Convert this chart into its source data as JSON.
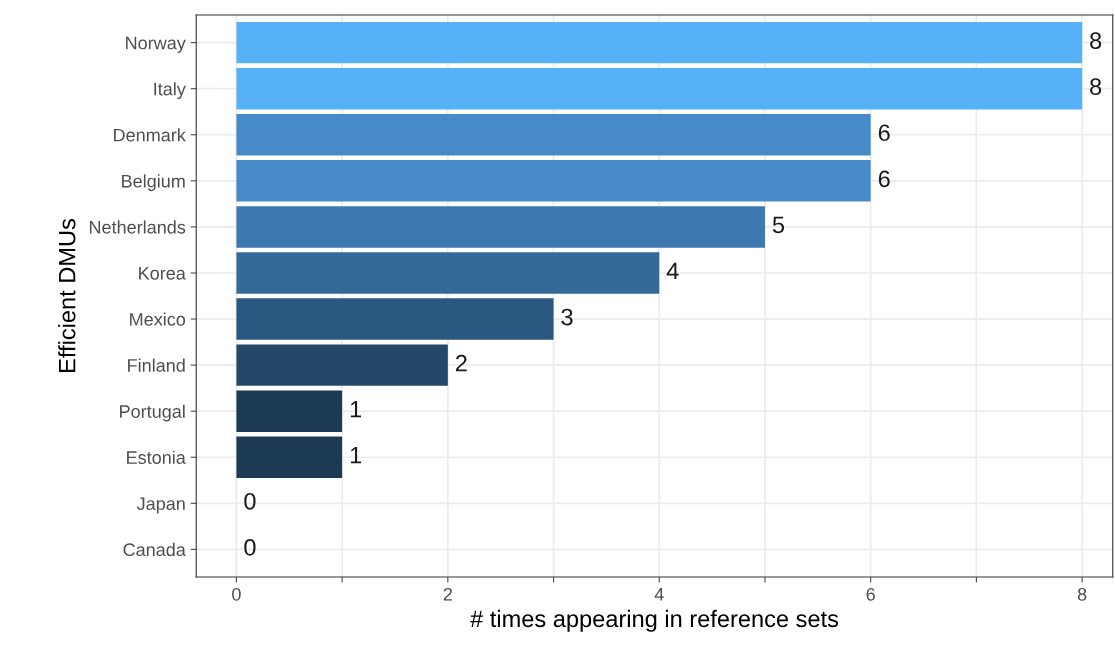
{
  "chart_data": {
    "type": "bar",
    "orientation": "horizontal",
    "xlabel": "# times appearing in reference sets",
    "ylabel": "Efficient DMUs",
    "categories": [
      "Norway",
      "Italy",
      "Denmark",
      "Belgium",
      "Netherlands",
      "Korea",
      "Mexico",
      "Finland",
      "Portugal",
      "Estonia",
      "Japan",
      "Canada"
    ],
    "values": [
      8,
      8,
      6,
      6,
      5,
      4,
      3,
      2,
      1,
      1,
      0,
      0
    ],
    "colors": [
      "#56b1f7",
      "#56b1f7",
      "#468bc8",
      "#468bc8",
      "#3d79b0",
      "#336a98",
      "#2b5880",
      "#244868",
      "#1d3a54",
      "#1d3a54",
      "#132b43",
      "#132b43"
    ],
    "xlim": [
      -0.38,
      8.29
    ],
    "xticks": [
      0,
      {
        "value": 1,
        "label": null
      },
      2,
      {
        "value": 3,
        "label": null
      },
      4,
      {
        "value": 5,
        "label": null
      },
      6,
      {
        "value": 7,
        "label": null
      },
      8
    ],
    "grid": true,
    "data_labels": true
  }
}
